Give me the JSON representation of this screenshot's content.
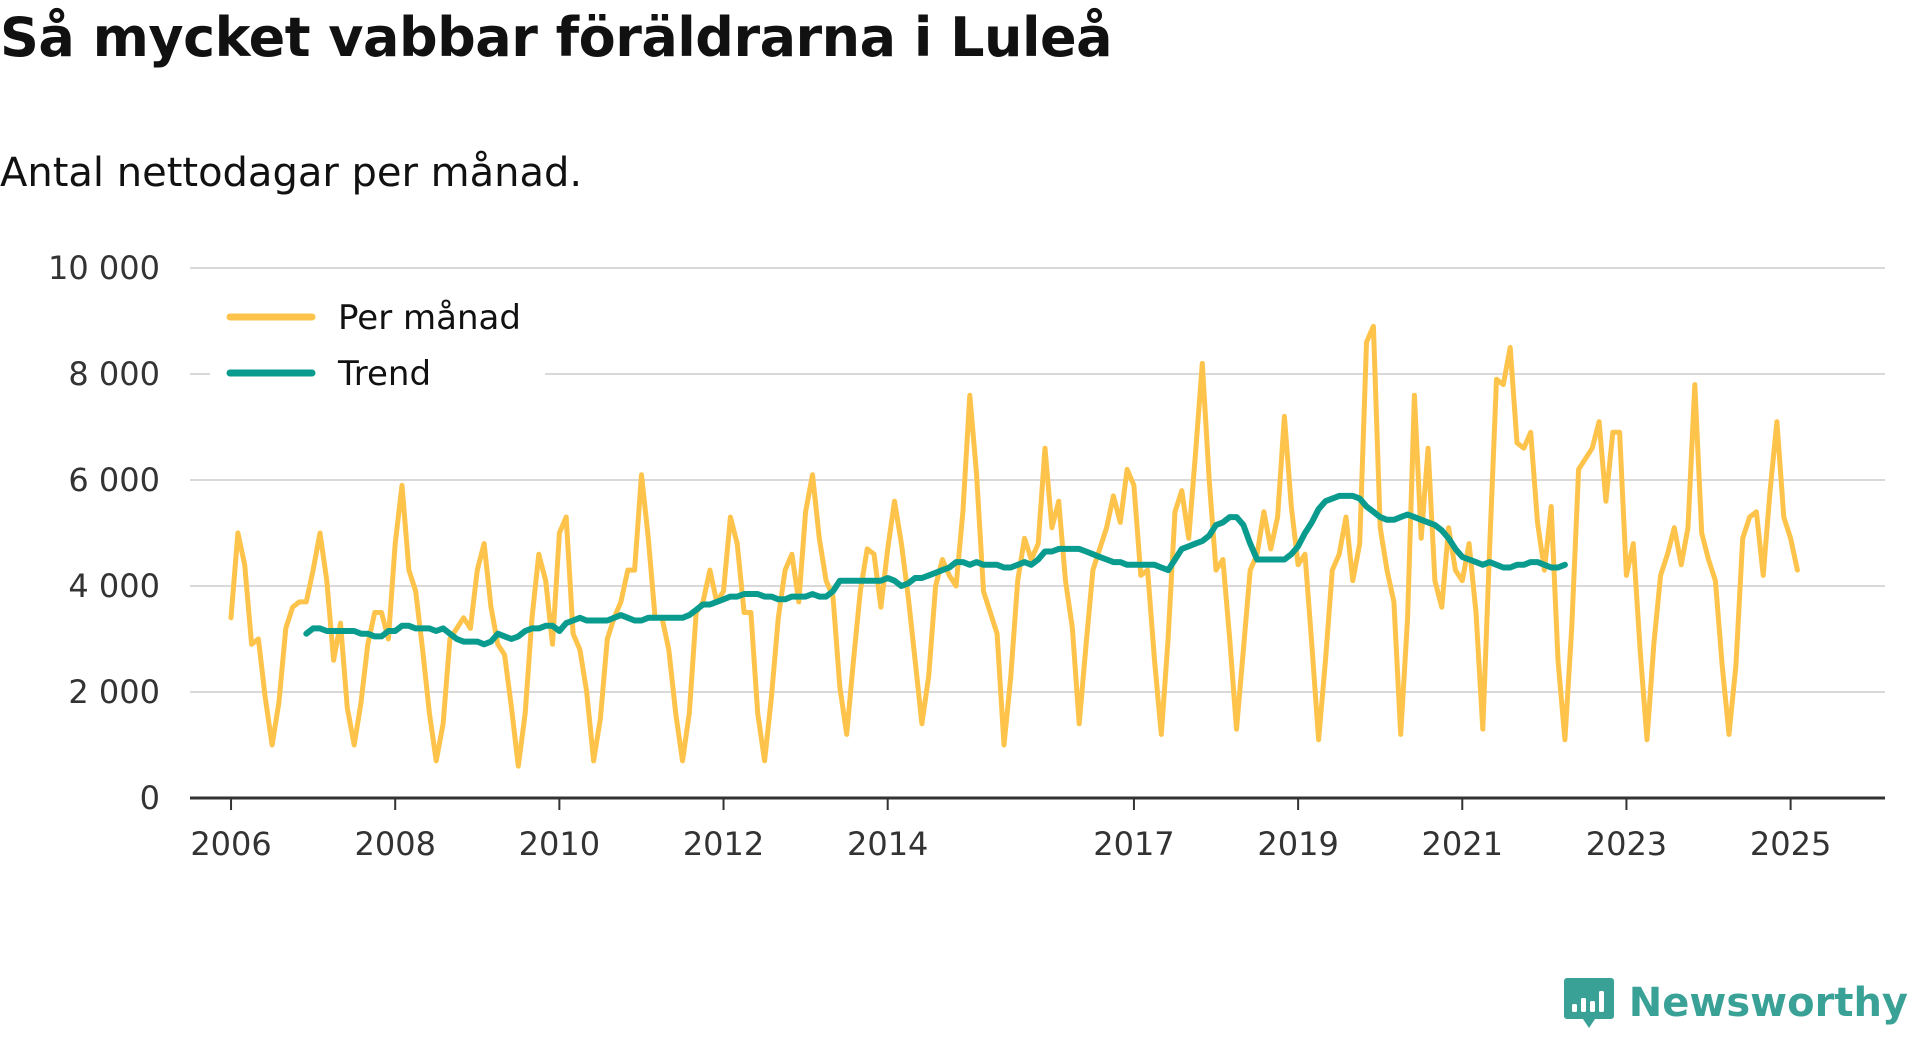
{
  "header": {
    "title": "Så mycket vabbar föräldrarna i Luleå",
    "subtitle": "Antal nettodagar per månad."
  },
  "brand": {
    "name": "Newsworthy"
  },
  "colors": {
    "monthly": "#fec34b",
    "trend": "#0a9b8f",
    "grid": "#d9d9d9",
    "axis": "#333333",
    "brand": "#3aa197"
  },
  "chart_data": {
    "type": "line",
    "title": "Så mycket vabbar föräldrarna i Luleå",
    "subtitle": "Antal nettodagar per månad.",
    "xlabel": "",
    "ylabel": "",
    "ylim": [
      0,
      10000
    ],
    "xlim": [
      2005.5,
      2026.15
    ],
    "y_ticks": [
      0,
      2000,
      4000,
      6000,
      8000,
      10000
    ],
    "y_tick_labels": [
      "0",
      "2 000",
      "4 000",
      "6 000",
      "8 000",
      "10 000"
    ],
    "x_ticks": [
      2006,
      2008,
      2010,
      2012,
      2014,
      2017,
      2019,
      2021,
      2023,
      2025
    ],
    "x_tick_labels": [
      "2006",
      "2008",
      "2010",
      "2012",
      "2014",
      "2017",
      "2019",
      "2021",
      "2023",
      "2025"
    ],
    "grid": "horizontal",
    "legend": {
      "position": "top-left",
      "entries": [
        "Per månad",
        "Trend"
      ]
    },
    "series": [
      {
        "name": "Per månad",
        "color": "#fec34b",
        "start": 2006.0,
        "step": 0.0833333,
        "values": [
          3400,
          5000,
          4400,
          2900,
          3000,
          1900,
          1000,
          1800,
          3200,
          3600,
          3700,
          3700,
          4300,
          5000,
          4100,
          2600,
          3300,
          1700,
          1000,
          1800,
          2900,
          3500,
          3500,
          3000,
          4800,
          5900,
          4300,
          3900,
          2800,
          1600,
          700,
          1400,
          3000,
          3200,
          3400,
          3200,
          4300,
          4800,
          3600,
          2900,
          2700,
          1700,
          600,
          1600,
          3400,
          4600,
          4100,
          2900,
          5000,
          5300,
          3100,
          2800,
          2000,
          700,
          1500,
          3000,
          3400,
          3700,
          4300,
          4300,
          6100,
          4900,
          3400,
          3400,
          2800,
          1600,
          700,
          1600,
          3500,
          3700,
          4300,
          3700,
          3900,
          5300,
          4800,
          3500,
          3500,
          1600,
          700,
          1900,
          3400,
          4300,
          4600,
          3700,
          5400,
          6100,
          4900,
          4100,
          3800,
          2100,
          1200,
          2600,
          3900,
          4700,
          4600,
          3600,
          4700,
          5600,
          4800,
          3800,
          2600,
          1400,
          2300,
          4000,
          4500,
          4200,
          4000,
          5400,
          7600,
          6100,
          3900,
          3500,
          3100,
          1000,
          2300,
          4100,
          4900,
          4500,
          4800,
          6600,
          5100,
          5600,
          4100,
          3200,
          1400,
          2900,
          4300,
          4700,
          5100,
          5700,
          5200,
          6200,
          5900,
          4200,
          4300,
          2600,
          1200,
          3000,
          5400,
          5800,
          4900,
          6500,
          8200,
          6000,
          4300,
          4500,
          3000,
          1300,
          2800,
          4300,
          4600,
          5400,
          4700,
          5300,
          7200,
          5500,
          4400,
          4600,
          2900,
          1100,
          2600,
          4300,
          4600,
          5300,
          4100,
          4800,
          8600,
          8900,
          5100,
          4300,
          3700,
          1200,
          3400,
          7600,
          4900,
          6600,
          4100,
          3600,
          5100,
          4300,
          4100,
          4800,
          3500,
          1300,
          4700,
          7900,
          7800,
          8500,
          6700,
          6600,
          6900,
          5200,
          4300,
          5500,
          2600,
          1100,
          3200,
          6200,
          6400,
          6600,
          7100,
          5600,
          6900,
          6900,
          4200,
          4800,
          2800,
          1100,
          2900,
          4200,
          4600,
          5100,
          4400,
          5100,
          7800,
          5000,
          4500,
          4100,
          2500,
          1200,
          2500,
          4900,
          5300,
          5400,
          4200,
          5800,
          7100,
          5300,
          4900,
          4300
        ]
      },
      {
        "name": "Trend",
        "color": "#0a9b8f",
        "start": 2006.9167,
        "step": 0.0833333,
        "values": [
          3100,
          3200,
          3200,
          3150,
          3150,
          3150,
          3150,
          3150,
          3100,
          3100,
          3050,
          3050,
          3150,
          3150,
          3250,
          3250,
          3200,
          3200,
          3200,
          3150,
          3200,
          3100,
          3000,
          2950,
          2950,
          2950,
          2900,
          2950,
          3100,
          3050,
          3000,
          3050,
          3150,
          3200,
          3200,
          3250,
          3250,
          3150,
          3300,
          3350,
          3400,
          3350,
          3350,
          3350,
          3350,
          3400,
          3450,
          3400,
          3350,
          3350,
          3400,
          3400,
          3400,
          3400,
          3400,
          3400,
          3450,
          3550,
          3650,
          3650,
          3700,
          3750,
          3800,
          3800,
          3850,
          3850,
          3850,
          3800,
          3800,
          3750,
          3750,
          3800,
          3800,
          3800,
          3850,
          3800,
          3800,
          3900,
          4100,
          4100,
          4100,
          4100,
          4100,
          4100,
          4100,
          4150,
          4100,
          4000,
          4050,
          4150,
          4150,
          4200,
          4250,
          4300,
          4350,
          4450,
          4450,
          4400,
          4450,
          4400,
          4400,
          4400,
          4350,
          4350,
          4400,
          4450,
          4400,
          4500,
          4650,
          4650,
          4700,
          4700,
          4700,
          4700,
          4650,
          4600,
          4550,
          4500,
          4450,
          4450,
          4400,
          4400,
          4400,
          4400,
          4400,
          4350,
          4300,
          4500,
          4700,
          4750,
          4800,
          4850,
          4950,
          5150,
          5200,
          5300,
          5300,
          5150,
          4800,
          4500,
          4500,
          4500,
          4500,
          4500,
          4600,
          4750,
          5000,
          5200,
          5450,
          5600,
          5650,
          5700,
          5700,
          5700,
          5650,
          5500,
          5400,
          5300,
          5250,
          5250,
          5300,
          5350,
          5300,
          5250,
          5200,
          5150,
          5050,
          4900,
          4700,
          4550,
          4500,
          4450,
          4400,
          4450,
          4400,
          4350,
          4350,
          4400,
          4400,
          4450,
          4450,
          4400,
          4350,
          4350,
          4400
        ]
      }
    ]
  }
}
